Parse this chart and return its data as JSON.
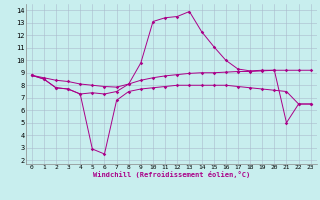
{
  "xlabel": "Windchill (Refroidissement éolien,°C)",
  "background_color": "#c8eeee",
  "line_color": "#aa0088",
  "grid_color": "#aabbcc",
  "xlim_min": -0.5,
  "xlim_max": 23.5,
  "ylim_min": 1.7,
  "ylim_max": 14.5,
  "xticks": [
    0,
    1,
    2,
    3,
    4,
    5,
    6,
    7,
    8,
    9,
    10,
    11,
    12,
    13,
    14,
    15,
    16,
    17,
    18,
    19,
    20,
    21,
    22,
    23
  ],
  "yticks": [
    2,
    3,
    4,
    5,
    6,
    7,
    8,
    9,
    10,
    11,
    12,
    13,
    14
  ],
  "line1_x": [
    0,
    1,
    2,
    3,
    4,
    5,
    6,
    7,
    8,
    9,
    10,
    11,
    12,
    13,
    14,
    15,
    16,
    17,
    18,
    19,
    20,
    21,
    22,
    23
  ],
  "line1_y": [
    8.8,
    8.5,
    7.8,
    7.7,
    7.3,
    7.4,
    7.3,
    7.5,
    8.1,
    9.8,
    13.1,
    13.4,
    13.5,
    13.9,
    12.3,
    11.1,
    10.0,
    9.3,
    9.15,
    9.2,
    9.2,
    5.0,
    6.5,
    6.5
  ],
  "line2_x": [
    0,
    1,
    2,
    3,
    4,
    5,
    6,
    7,
    8,
    9,
    10,
    11,
    12,
    13,
    14,
    15,
    16,
    17,
    18,
    19,
    20,
    21,
    22,
    23
  ],
  "line2_y": [
    8.8,
    8.5,
    7.8,
    7.7,
    7.3,
    2.9,
    2.5,
    6.8,
    7.5,
    7.7,
    7.8,
    7.9,
    8.0,
    8.0,
    8.0,
    8.0,
    8.0,
    7.9,
    7.8,
    7.7,
    7.6,
    7.5,
    6.5,
    6.5
  ],
  "line3_x": [
    0,
    1,
    2,
    3,
    4,
    5,
    6,
    7,
    8,
    9,
    10,
    11,
    12,
    13,
    14,
    15,
    16,
    17,
    18,
    19,
    20,
    21,
    22,
    23
  ],
  "line3_y": [
    8.8,
    8.6,
    8.4,
    8.3,
    8.1,
    8.0,
    7.9,
    7.85,
    8.1,
    8.4,
    8.6,
    8.75,
    8.85,
    8.95,
    9.0,
    9.0,
    9.05,
    9.1,
    9.1,
    9.15,
    9.2,
    9.2,
    9.2,
    9.2
  ]
}
